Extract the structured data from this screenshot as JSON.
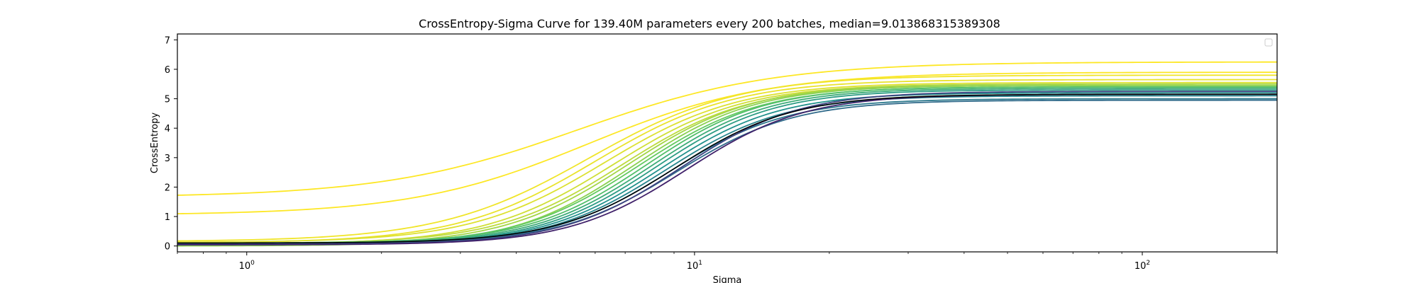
{
  "chart_data": {
    "type": "line",
    "title": "CrossEntropy-Sigma Curve for 139.40M parameters every 200 batches, median=9.013868315389308",
    "xlabel": "Sigma",
    "ylabel": "CrossEntropy",
    "xscale": "log",
    "xlim": [
      0.7,
      200
    ],
    "ylim": [
      -0.2,
      7.2
    ],
    "grid": false,
    "legend": {
      "placement": "top-right",
      "entries": []
    },
    "x_ticks": [
      {
        "base": "10",
        "exp": "0",
        "value": 1
      },
      {
        "base": "10",
        "exp": "1",
        "value": 10
      },
      {
        "base": "10",
        "exp": "2",
        "value": 100
      }
    ],
    "y_ticks": [
      "0",
      "1",
      "2",
      "3",
      "4",
      "5",
      "6",
      "7"
    ],
    "y_tick_values": [
      0,
      1,
      2,
      3,
      4,
      5,
      6,
      7
    ],
    "colormap": [
      "#440154",
      "#3b528b",
      "#21918c",
      "#5ec962",
      "#fde725"
    ],
    "median_line_color": "#000000",
    "series_model": "y = low + (high - low) / (1 + (mid / x)^steep)",
    "series": [
      {
        "low": 1.65,
        "high": 6.25,
        "mid": 5.5,
        "steep": 2.0,
        "color_t": 1.0
      },
      {
        "low": 1.05,
        "high": 5.9,
        "mid": 5.8,
        "steep": 2.2,
        "color_t": 1.0
      },
      {
        "low": 0.15,
        "high": 5.8,
        "mid": 5.8,
        "steep": 2.6,
        "color_t": 0.98
      },
      {
        "low": 0.1,
        "high": 5.65,
        "mid": 6.0,
        "steep": 2.8,
        "color_t": 0.97
      },
      {
        "low": 0.12,
        "high": 5.55,
        "mid": 6.3,
        "steep": 2.9,
        "color_t": 0.95
      },
      {
        "low": 0.05,
        "high": 5.5,
        "mid": 6.6,
        "steep": 3.0,
        "color_t": 0.93
      },
      {
        "low": 0.08,
        "high": 5.45,
        "mid": 6.9,
        "steep": 3.1,
        "color_t": 0.9
      },
      {
        "low": 0.03,
        "high": 5.5,
        "mid": 7.1,
        "steep": 3.1,
        "color_t": 0.86
      },
      {
        "low": 0.0,
        "high": 5.45,
        "mid": 7.3,
        "steep": 3.2,
        "color_t": 0.82
      },
      {
        "low": 0.05,
        "high": 5.4,
        "mid": 7.5,
        "steep": 3.2,
        "color_t": 0.76
      },
      {
        "low": 0.1,
        "high": 5.4,
        "mid": 7.8,
        "steep": 3.3,
        "color_t": 0.7
      },
      {
        "low": 0.08,
        "high": 5.35,
        "mid": 8.0,
        "steep": 3.3,
        "color_t": 0.62
      },
      {
        "low": 0.06,
        "high": 5.3,
        "mid": 8.2,
        "steep": 3.3,
        "color_t": 0.55
      },
      {
        "low": 0.05,
        "high": 5.2,
        "mid": 8.4,
        "steep": 3.3,
        "color_t": 0.5
      },
      {
        "low": 0.04,
        "high": 5.1,
        "mid": 8.6,
        "steep": 3.3,
        "color_t": 0.45
      },
      {
        "low": 0.06,
        "high": 5.0,
        "mid": 8.8,
        "steep": 3.3,
        "color_t": 0.4
      },
      {
        "low": 0.07,
        "high": 4.95,
        "mid": 9.1,
        "steep": 3.3,
        "color_t": 0.35
      },
      {
        "low": 0.05,
        "high": 5.25,
        "mid": 9.3,
        "steep": 3.3,
        "color_t": 0.2
      },
      {
        "low": 0.04,
        "high": 5.15,
        "mid": 9.6,
        "steep": 3.3,
        "color_t": 0.1
      },
      {
        "low": 0.1,
        "high": 5.15,
        "mid": 9.0,
        "steep": 3.3,
        "color_t": -1
      }
    ]
  }
}
